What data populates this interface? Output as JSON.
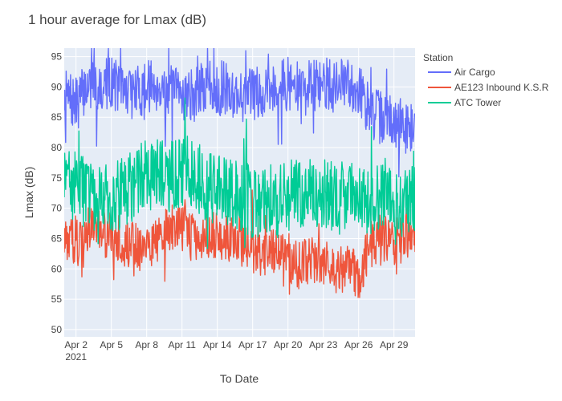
{
  "chart_data": {
    "type": "line",
    "title": "1 hour average for Lmax (dB)",
    "xlabel": "To Date",
    "ylabel": "Lmax (dB)",
    "x_range": [
      "2021-04-01",
      "2021-04-30T19:00"
    ],
    "ylim": [
      48.8,
      96.4
    ],
    "x_ticks": [
      {
        "date": "2021-04-02",
        "label": "Apr 2",
        "sublabel": "2021"
      },
      {
        "date": "2021-04-05",
        "label": "Apr 5",
        "sublabel": ""
      },
      {
        "date": "2021-04-08",
        "label": "Apr 8",
        "sublabel": ""
      },
      {
        "date": "2021-04-11",
        "label": "Apr 11",
        "sublabel": ""
      },
      {
        "date": "2021-04-14",
        "label": "Apr 14",
        "sublabel": ""
      },
      {
        "date": "2021-04-17",
        "label": "Apr 17",
        "sublabel": ""
      },
      {
        "date": "2021-04-20",
        "label": "Apr 20",
        "sublabel": ""
      },
      {
        "date": "2021-04-23",
        "label": "Apr 23",
        "sublabel": ""
      },
      {
        "date": "2021-04-26",
        "label": "Apr 26",
        "sublabel": ""
      },
      {
        "date": "2021-04-29",
        "label": "Apr 29",
        "sublabel": ""
      }
    ],
    "y_ticks": [
      {
        "value": 50,
        "label": "50"
      },
      {
        "value": 55,
        "label": "55"
      },
      {
        "value": 60,
        "label": "60"
      },
      {
        "value": 65,
        "label": "65"
      },
      {
        "value": 70,
        "label": "70"
      },
      {
        "value": 75,
        "label": "75"
      },
      {
        "value": 80,
        "label": "80"
      },
      {
        "value": 85,
        "label": "85"
      },
      {
        "value": 90,
        "label": "90"
      },
      {
        "value": 95,
        "label": "95"
      }
    ],
    "grid": true,
    "legend": {
      "title": "Station",
      "position": "top-right"
    },
    "series": [
      {
        "name": "Air Cargo",
        "color": "#636efa",
        "x": [
          "2021-04-01",
          "2021-04-02",
          "2021-04-03",
          "2021-04-04",
          "2021-04-05",
          "2021-04-06",
          "2021-04-07",
          "2021-04-08",
          "2021-04-09",
          "2021-04-10",
          "2021-04-11",
          "2021-04-12",
          "2021-04-13",
          "2021-04-14",
          "2021-04-15",
          "2021-04-16",
          "2021-04-17",
          "2021-04-18",
          "2021-04-19",
          "2021-04-20",
          "2021-04-21",
          "2021-04-22",
          "2021-04-23",
          "2021-04-24",
          "2021-04-25",
          "2021-04-26",
          "2021-04-27",
          "2021-04-28",
          "2021-04-29",
          "2021-04-30"
        ],
        "y": [
          88.5,
          87.0,
          90.5,
          90.0,
          91.0,
          89.5,
          89.0,
          90.0,
          90.5,
          89.0,
          89.0,
          88.5,
          90.0,
          90.0,
          89.5,
          88.5,
          89.0,
          89.5,
          90.0,
          90.5,
          89.5,
          90.0,
          90.5,
          90.0,
          90.5,
          90.0,
          85.5,
          85.0,
          84.0,
          83.5
        ]
      },
      {
        "name": "AE123 Inbound K.S.R",
        "color": "#ef553b",
        "x": [
          "2021-04-01",
          "2021-04-02",
          "2021-04-03",
          "2021-04-04",
          "2021-04-05",
          "2021-04-06",
          "2021-04-07",
          "2021-04-08",
          "2021-04-09",
          "2021-04-10",
          "2021-04-11",
          "2021-04-12",
          "2021-04-13",
          "2021-04-14",
          "2021-04-15",
          "2021-04-16",
          "2021-04-17",
          "2021-04-18",
          "2021-04-19",
          "2021-04-20",
          "2021-04-21",
          "2021-04-22",
          "2021-04-23",
          "2021-04-24",
          "2021-04-25",
          "2021-04-26",
          "2021-04-27",
          "2021-04-28",
          "2021-04-29",
          "2021-04-30"
        ],
        "y": [
          64.5,
          65.0,
          66.5,
          66.0,
          65.5,
          64.5,
          63.5,
          64.0,
          65.0,
          66.5,
          67.0,
          65.5,
          66.0,
          65.5,
          65.0,
          64.5,
          63.0,
          62.5,
          63.5,
          62.0,
          60.5,
          61.5,
          61.0,
          59.5,
          60.5,
          58.5,
          64.0,
          65.5,
          64.0,
          65.5
        ]
      },
      {
        "name": "ATC Tower",
        "color": "#00cc96",
        "x": [
          "2021-04-01",
          "2021-04-02",
          "2021-04-03",
          "2021-04-04",
          "2021-04-05",
          "2021-04-06",
          "2021-04-07",
          "2021-04-08",
          "2021-04-09",
          "2021-04-10",
          "2021-04-11",
          "2021-04-12",
          "2021-04-13",
          "2021-04-14",
          "2021-04-15",
          "2021-04-16",
          "2021-04-17",
          "2021-04-18",
          "2021-04-19",
          "2021-04-20",
          "2021-04-21",
          "2021-04-22",
          "2021-04-23",
          "2021-04-24",
          "2021-04-25",
          "2021-04-26",
          "2021-04-27",
          "2021-04-28",
          "2021-04-29",
          "2021-04-30"
        ],
        "y": [
          74.0,
          73.5,
          72.5,
          71.5,
          72.0,
          72.5,
          74.0,
          75.5,
          76.0,
          75.0,
          76.5,
          75.5,
          74.0,
          73.0,
          72.5,
          72.0,
          71.0,
          71.5,
          71.0,
          72.0,
          72.5,
          73.0,
          72.5,
          71.5,
          72.0,
          72.5,
          71.0,
          71.5,
          70.5,
          71.0
        ]
      }
    ]
  }
}
